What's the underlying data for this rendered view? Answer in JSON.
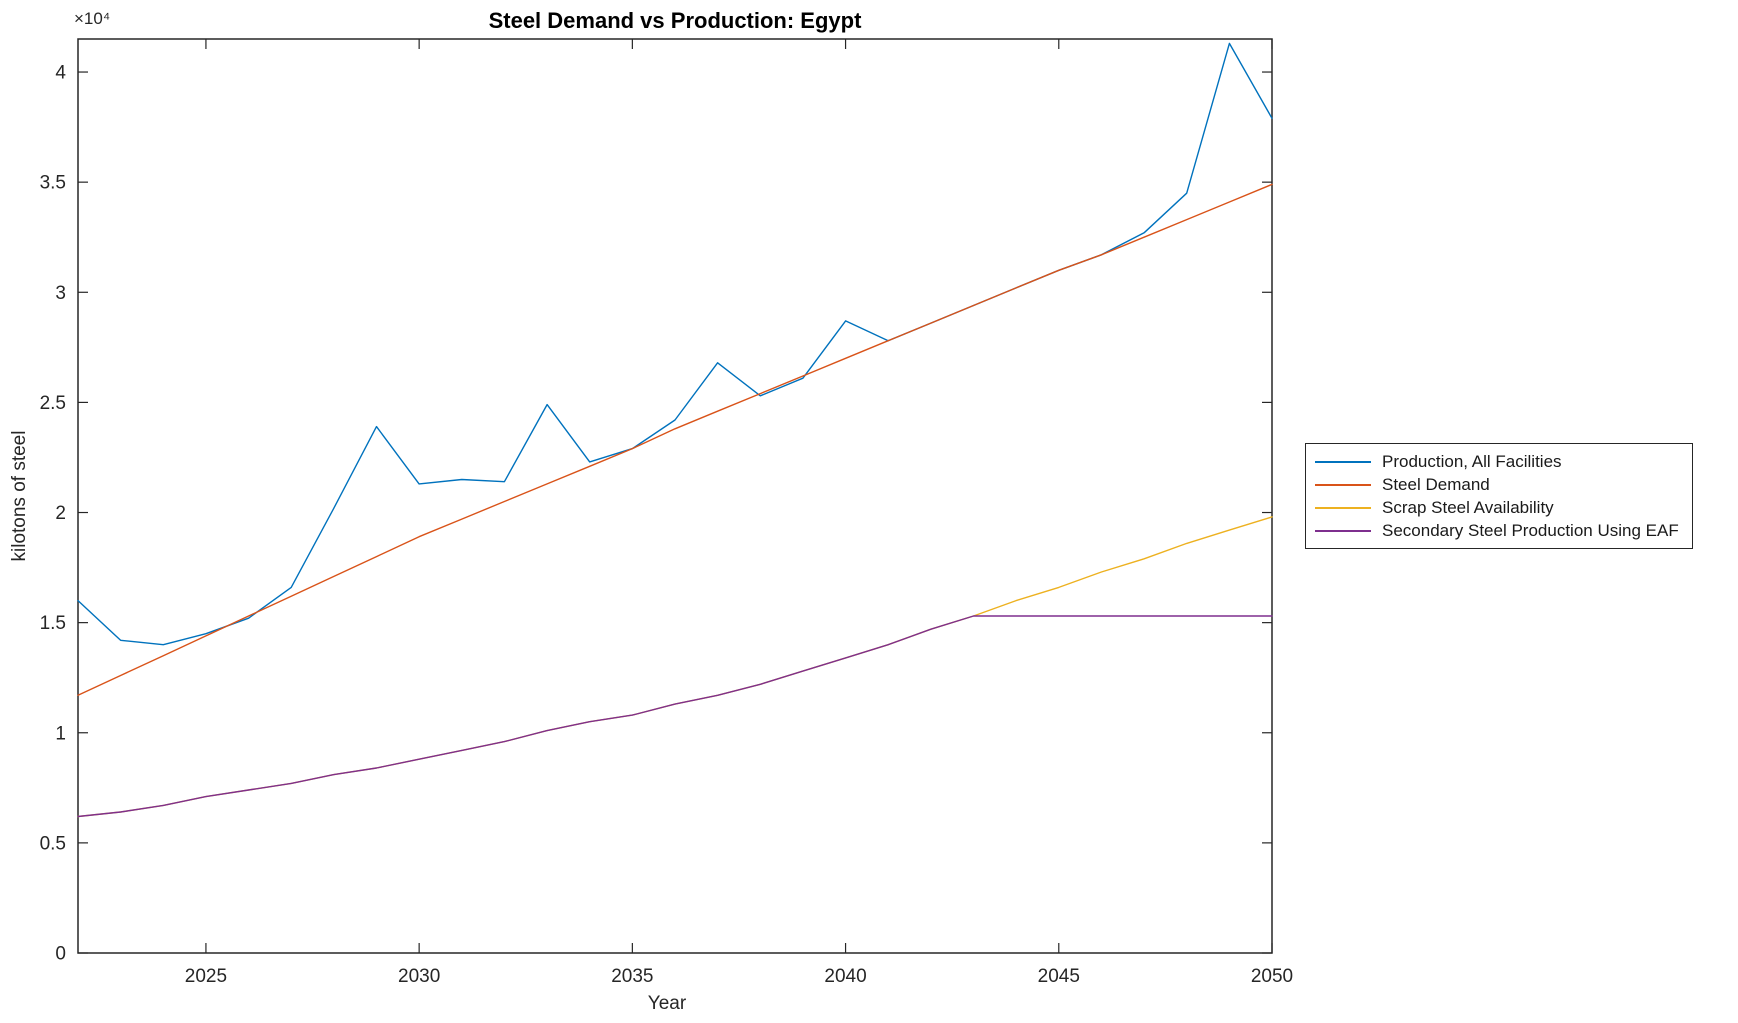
{
  "figure": {
    "title": "Steel Demand vs Production: Egypt"
  },
  "chart_data": {
    "type": "line",
    "title": "Steel Demand vs Production: Egypt",
    "xlabel": "Year",
    "ylabel": "kilotons of steel",
    "y_exponent_label": "×10⁴",
    "xlim": [
      2022,
      2050
    ],
    "ylim": [
      0,
      41500
    ],
    "grid": false,
    "legend_position": "right-outside",
    "axis_color": "#262626",
    "x_ticks": [
      2025,
      2030,
      2035,
      2040,
      2045,
      2050
    ],
    "x_tick_labels": [
      "2025",
      "2030",
      "2035",
      "2040",
      "2045",
      "2050"
    ],
    "y_ticks": [
      0,
      5000,
      10000,
      15000,
      20000,
      25000,
      30000,
      35000,
      40000
    ],
    "y_tick_labels": [
      "0",
      "0.5",
      "1",
      "1.5",
      "2",
      "2.5",
      "3",
      "3.5",
      "4"
    ],
    "x": [
      2022,
      2023,
      2024,
      2025,
      2026,
      2027,
      2028,
      2029,
      2030,
      2031,
      2032,
      2033,
      2034,
      2035,
      2036,
      2037,
      2038,
      2039,
      2040,
      2041,
      2042,
      2043,
      2044,
      2045,
      2046,
      2047,
      2048,
      2049,
      2050
    ],
    "series": [
      {
        "name": "Production, All Facilities",
        "color": "#0072BD",
        "values": [
          16000,
          14200,
          14000,
          14500,
          15200,
          16600,
          20200,
          23900,
          21300,
          21500,
          21400,
          24900,
          22300,
          22900,
          24200,
          26800,
          25300,
          26100,
          28700,
          27800,
          28600,
          29400,
          30200,
          31000,
          31700,
          32700,
          34500,
          41300,
          37900
        ]
      },
      {
        "name": "Steel Demand",
        "color": "#D95319",
        "values": [
          11700,
          12600,
          13500,
          14400,
          15300,
          16200,
          17100,
          18000,
          18900,
          19700,
          20500,
          21300,
          22100,
          22900,
          23800,
          24600,
          25400,
          26200,
          27000,
          27800,
          28600,
          29400,
          30200,
          31000,
          31700,
          32500,
          33300,
          34100,
          34900
        ]
      },
      {
        "name": "Scrap Steel Availability",
        "color": "#EDB120",
        "values": [
          6200,
          6400,
          6700,
          7100,
          7400,
          7700,
          8100,
          8400,
          8800,
          9200,
          9600,
          10100,
          10500,
          10800,
          11300,
          11700,
          12200,
          12800,
          13400,
          14000,
          14700,
          15300,
          16000,
          16600,
          17300,
          17900,
          18600,
          19200,
          19800
        ]
      },
      {
        "name": "Secondary Steel Production Using EAF",
        "color": "#7E2F8E",
        "values": [
          6200,
          6400,
          6700,
          7100,
          7400,
          7700,
          8100,
          8400,
          8800,
          9200,
          9600,
          10100,
          10500,
          10800,
          11300,
          11700,
          12200,
          12800,
          13400,
          14000,
          14700,
          15300,
          15300,
          15300,
          15300,
          15300,
          15300,
          15300,
          15300
        ]
      }
    ]
  }
}
